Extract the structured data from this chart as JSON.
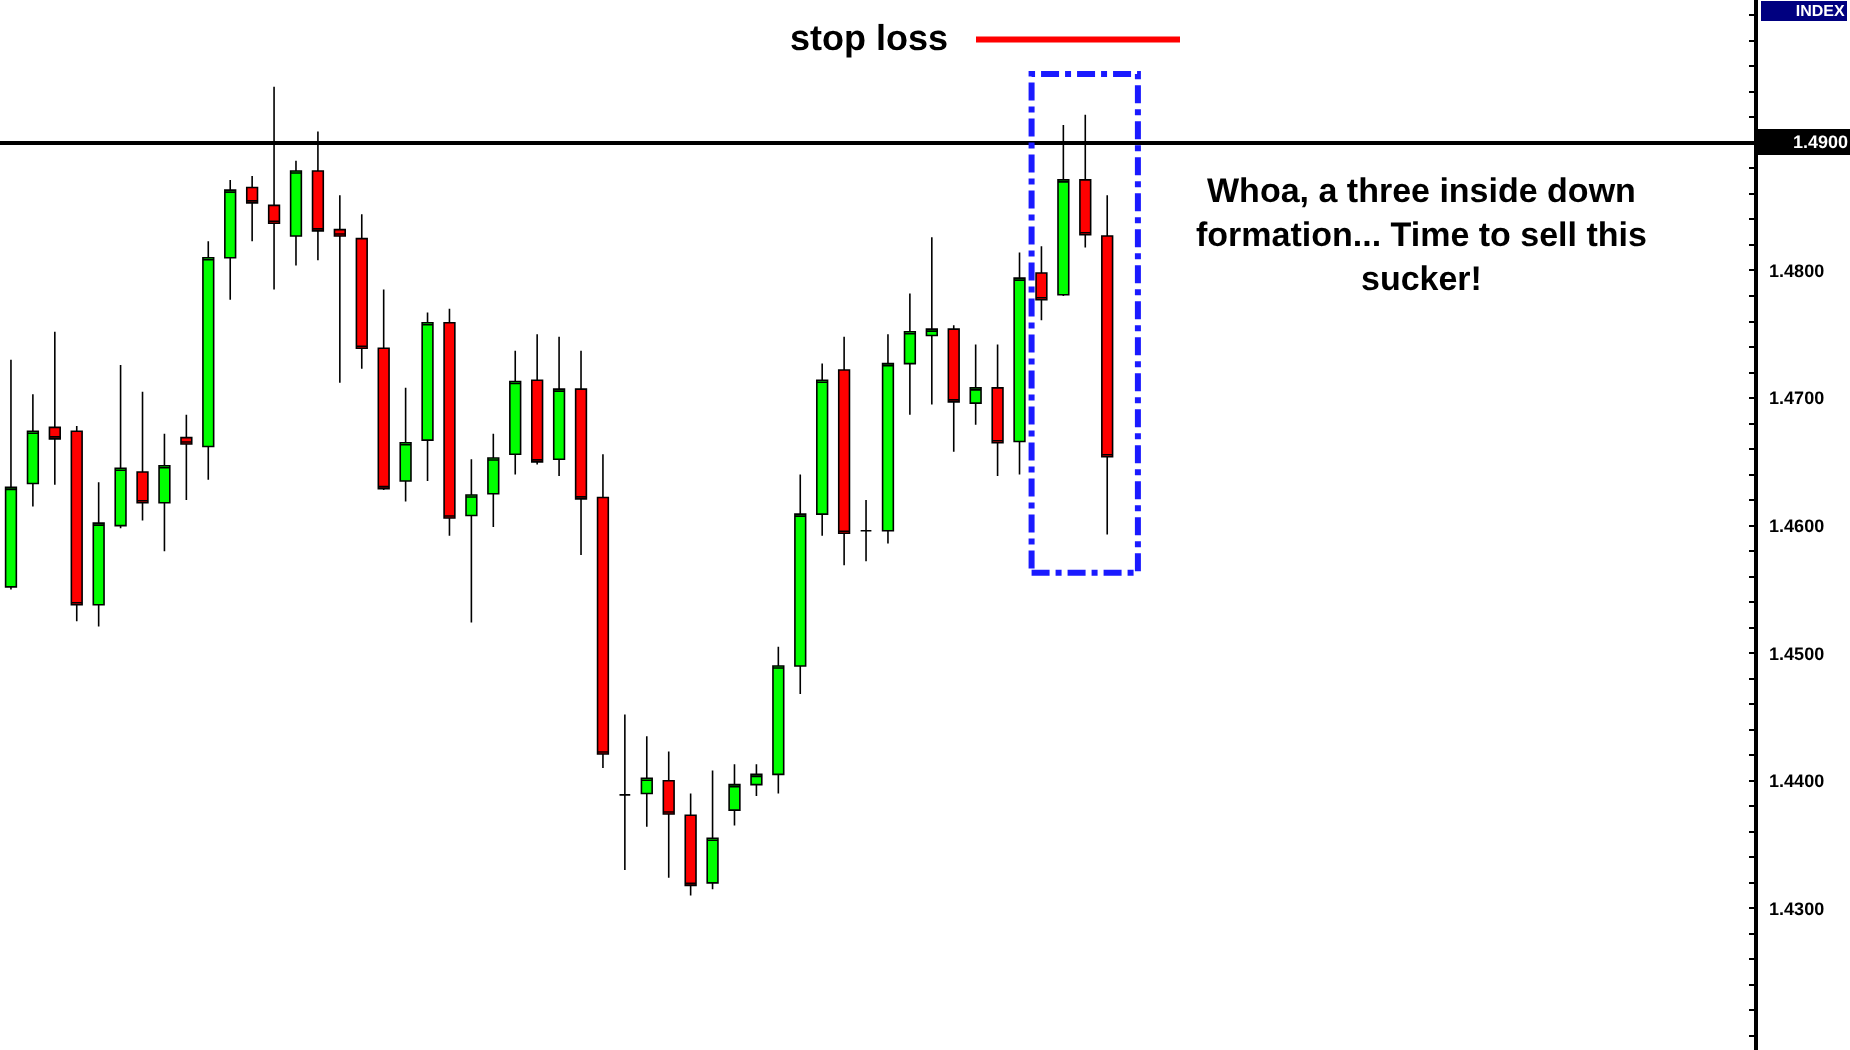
{
  "chart_data": {
    "type": "candlestick",
    "categories": [
      null,
      null,
      null,
      null,
      null,
      null,
      null,
      null,
      null,
      null,
      null,
      null,
      null,
      null,
      null,
      null,
      null,
      null,
      null,
      null,
      null,
      null,
      null,
      null,
      null,
      null,
      null,
      null,
      null,
      null,
      null,
      null,
      null,
      null,
      null,
      null,
      null,
      null,
      null,
      null,
      null,
      null,
      null,
      null,
      null,
      null,
      null,
      null,
      null,
      null,
      null,
      null,
      null,
      null,
      null,
      null,
      null,
      null,
      null,
      null,
      null,
      null,
      null,
      null,
      null,
      null,
      null,
      null,
      null,
      null,
      null,
      null,
      null,
      null,
      null,
      null,
      null,
      null,
      null,
      null
    ],
    "ohlc": [
      [
        1.4552,
        1.473,
        1.455,
        1.463
      ],
      [
        1.4633,
        1.4703,
        1.4615,
        1.4674
      ],
      [
        1.4677,
        1.4752,
        1.4632,
        1.4668
      ],
      [
        1.4674,
        1.4678,
        1.4525,
        1.4538
      ],
      [
        1.4538,
        1.4634,
        1.4521,
        1.4602
      ],
      [
        1.46,
        1.4726,
        1.4598,
        1.4645
      ],
      [
        1.4642,
        1.4705,
        1.4604,
        1.4618
      ],
      [
        1.4618,
        1.4672,
        1.458,
        1.4647
      ],
      [
        1.4669,
        1.4687,
        1.462,
        1.4664
      ],
      [
        1.4662,
        1.4823,
        1.4636,
        1.481
      ],
      [
        1.481,
        1.4871,
        1.4777,
        1.4863
      ],
      [
        1.4865,
        1.4874,
        1.4823,
        1.4853
      ],
      [
        1.4851,
        1.4944,
        1.4785,
        1.4837
      ],
      [
        1.4827,
        1.4886,
        1.4804,
        1.4878
      ],
      [
        1.4878,
        1.4909,
        1.4808,
        1.4831
      ],
      [
        1.4832,
        1.4859,
        1.4712,
        1.4827
      ],
      [
        1.4825,
        1.4844,
        1.4723,
        1.4739
      ],
      [
        1.4739,
        1.4785,
        1.4628,
        1.4629
      ],
      [
        1.4635,
        1.4708,
        1.4619,
        1.4665
      ],
      [
        1.4667,
        1.4767,
        1.4635,
        1.4759
      ],
      [
        1.4759,
        1.477,
        1.4592,
        1.4606
      ],
      [
        1.4608,
        1.4652,
        1.4524,
        1.4624
      ],
      [
        1.4625,
        1.4672,
        1.4599,
        1.4653
      ],
      [
        1.4656,
        1.4737,
        1.464,
        1.4713
      ],
      [
        1.4714,
        1.475,
        1.4648,
        1.465
      ],
      [
        1.4652,
        1.4748,
        1.4639,
        1.4707
      ],
      [
        1.4707,
        1.4737,
        1.4577,
        1.4621
      ],
      [
        1.4622,
        1.4656,
        1.441,
        1.4421
      ],
      [
        1.4389,
        1.4452,
        1.433,
        1.4389
      ],
      [
        1.439,
        1.4435,
        1.4364,
        1.4402
      ],
      [
        1.44,
        1.4423,
        1.4324,
        1.4374
      ],
      [
        1.4373,
        1.439,
        1.431,
        1.4318
      ],
      [
        1.432,
        1.4408,
        1.4315,
        1.4355
      ],
      [
        1.4377,
        1.4413,
        1.4365,
        1.4397
      ],
      [
        1.4397,
        1.4413,
        1.4388,
        1.4405
      ],
      [
        1.4405,
        1.4505,
        1.439,
        1.449
      ],
      [
        1.449,
        1.464,
        1.4468,
        1.4609
      ],
      [
        1.4609,
        1.4727,
        1.4592,
        1.4714
      ],
      [
        1.4722,
        1.4748,
        1.4569,
        1.4594
      ],
      [
        1.4596,
        1.462,
        1.4572,
        1.4596
      ],
      [
        1.4596,
        1.475,
        1.4586,
        1.4727
      ],
      [
        1.4727,
        1.4782,
        1.4687,
        1.4752
      ],
      [
        1.4749,
        1.4826,
        1.4695,
        1.4754
      ],
      [
        1.4754,
        1.4757,
        1.4658,
        1.4697
      ],
      [
        1.4696,
        1.4742,
        1.4679,
        1.4708
      ],
      [
        1.4708,
        1.4742,
        1.4639,
        1.4665
      ],
      [
        1.4666,
        1.4814,
        1.464,
        1.4794
      ],
      [
        1.4798,
        1.4819,
        1.4761,
        1.4777
      ],
      [
        1.4781,
        1.4914,
        1.478,
        1.4871
      ],
      [
        1.4871,
        1.4922,
        1.4818,
        1.4828
      ],
      [
        1.4827,
        1.4859,
        1.4593,
        1.4654
      ],
      null,
      null,
      null,
      null,
      null,
      null,
      null,
      null,
      null,
      null,
      null,
      null,
      null,
      null,
      null,
      null,
      null,
      null,
      null,
      null,
      null,
      null,
      null,
      null,
      null,
      null,
      null,
      null,
      null
    ],
    "colors": [
      "#00ff00",
      "#00ff00",
      "#ff0000",
      "#ff0000",
      "#00ff00",
      "#00ff00",
      "#ff0000",
      "#00ff00",
      "#ff0000",
      "#00ff00",
      "#00ff00",
      "#ff0000",
      "#ff0000",
      "#00ff00",
      "#ff0000",
      "#ff0000",
      "#ff0000",
      "#ff0000",
      "#00ff00",
      "#00ff00",
      "#ff0000",
      "#00ff00",
      "#00ff00",
      "#00ff00",
      "#ff0000",
      "#00ff00",
      "#ff0000",
      "#ff0000",
      "#000000",
      "#00ff00",
      "#ff0000",
      "#ff0000",
      "#00ff00",
      "#00ff00",
      "#00ff00",
      "#00ff00",
      "#00ff00",
      "#00ff00",
      "#ff0000",
      "#000000",
      "#00ff00",
      "#00ff00",
      "#00ff00",
      "#ff0000",
      "#00ff00",
      "#ff0000",
      "#00ff00",
      "#ff0000",
      "#00ff00",
      "#ff0000",
      "#ff0000",
      null,
      null,
      null,
      null,
      null,
      null,
      null,
      null,
      null,
      null,
      null,
      null,
      null,
      null,
      null,
      null,
      null,
      null,
      null,
      null,
      null,
      null,
      null,
      null,
      null,
      null,
      null,
      null,
      null
    ],
    "ylim": [
      1.4189,
      1.5012
    ],
    "yticks": [
      {
        "value": 1.42,
        "label": null
      },
      {
        "value": 1.422,
        "label": null
      },
      {
        "value": 1.424,
        "label": null
      },
      {
        "value": 1.426,
        "label": null
      },
      {
        "value": 1.428,
        "label": null
      },
      {
        "value": 1.43,
        "label": "1.4300"
      },
      {
        "value": 1.432,
        "label": null
      },
      {
        "value": 1.434,
        "label": null
      },
      {
        "value": 1.436,
        "label": null
      },
      {
        "value": 1.438,
        "label": null
      },
      {
        "value": 1.44,
        "label": "1.4400"
      },
      {
        "value": 1.442,
        "label": null
      },
      {
        "value": 1.444,
        "label": null
      },
      {
        "value": 1.446,
        "label": null
      },
      {
        "value": 1.448,
        "label": null
      },
      {
        "value": 1.45,
        "label": "1.4500"
      },
      {
        "value": 1.452,
        "label": null
      },
      {
        "value": 1.454,
        "label": null
      },
      {
        "value": 1.456,
        "label": null
      },
      {
        "value": 1.458,
        "label": null
      },
      {
        "value": 1.46,
        "label": "1.4600"
      },
      {
        "value": 1.462,
        "label": null
      },
      {
        "value": 1.464,
        "label": null
      },
      {
        "value": 1.466,
        "label": null
      },
      {
        "value": 1.468,
        "label": null
      },
      {
        "value": 1.47,
        "label": "1.4700"
      },
      {
        "value": 1.472,
        "label": null
      },
      {
        "value": 1.474,
        "label": null
      },
      {
        "value": 1.476,
        "label": null
      },
      {
        "value": 1.478,
        "label": null
      },
      {
        "value": 1.48,
        "label": "1.4800"
      },
      {
        "value": 1.482,
        "label": null
      },
      {
        "value": 1.484,
        "label": null
      },
      {
        "value": 1.486,
        "label": null
      },
      {
        "value": 1.488,
        "label": null
      },
      {
        "value": 1.49,
        "label": null
      },
      {
        "value": 1.492,
        "label": null
      },
      {
        "value": 1.494,
        "label": null
      },
      {
        "value": 1.496,
        "label": null
      },
      {
        "value": 1.498,
        "label": null
      },
      {
        "value": 1.5,
        "label": null
      }
    ],
    "ylabel": "INDEX",
    "tick_labels": "y",
    "ref_lines": [
      {
        "axis": "y",
        "value": 1.49,
        "label": "1.4900",
        "color": "#000000"
      },
      {
        "axis": "y",
        "value": 1.4981,
        "label": "stop loss",
        "color": "#ff0000"
      }
    ],
    "annotations": [
      "Whoa, a three inside down formation... Time to sell this sucker!"
    ]
  }
}
